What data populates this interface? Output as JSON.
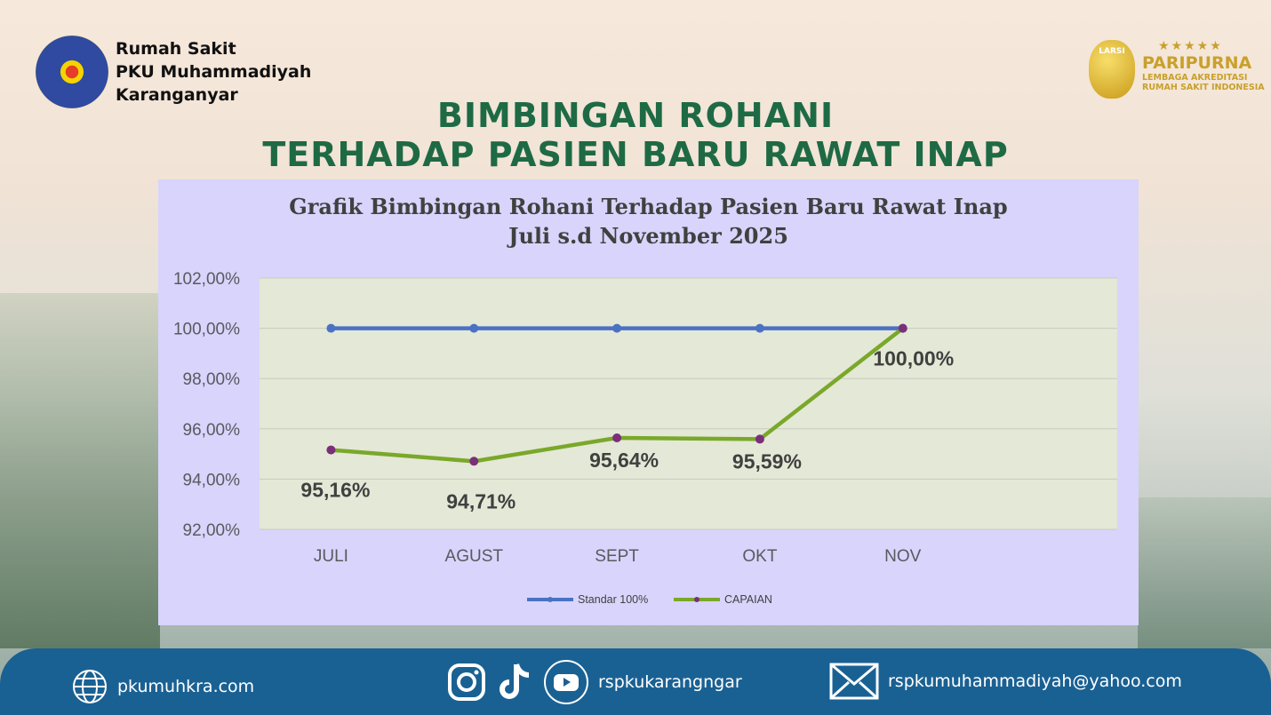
{
  "header": {
    "hospital_lines": [
      "Rumah Sakit",
      "PKU Muhammadiyah",
      "Karanganyar"
    ],
    "accreditation": {
      "badge": "LARSI",
      "stars": "★★★★★",
      "level": "PARIPURNA",
      "org_lines": [
        "LEMBAGA AKREDITASI",
        "RUMAH SAKIT INDONESIA"
      ]
    },
    "title_lines": [
      "BIMBINGAN ROHANI",
      "TERHADAP PASIEN BARU RAWAT INAP"
    ]
  },
  "chart_data": {
    "type": "line",
    "title": "Grafik Bimbingan Rohani Terhadap Pasien Baru Rawat Inap",
    "subtitle": "Juli s.d November 2025",
    "categories": [
      "JULI",
      "AGUST",
      "SEPT",
      "OKT",
      "NOV"
    ],
    "ylim": [
      92,
      102
    ],
    "yticks": [
      "92,00%",
      "94,00%",
      "96,00%",
      "98,00%",
      "100,00%",
      "102,00%"
    ],
    "grid": true,
    "legend_position": "bottom",
    "series": [
      {
        "name": "Standar 100%",
        "values": [
          100,
          100,
          100,
          100,
          100
        ],
        "color": "#4a72c4",
        "marker": "#4a72c4"
      },
      {
        "name": "CAPAIAN",
        "values": [
          95.16,
          94.71,
          95.64,
          95.59,
          100
        ],
        "color": "#7aa82a",
        "marker": "#7a2f7a",
        "labels": [
          "95,16%",
          "94,71%",
          "95,64%",
          "95,59%",
          "100,00%"
        ]
      }
    ]
  },
  "footer": {
    "website": "pkumuhkra.com",
    "social": "rspkukarangngar",
    "email": "rspkumuhammadiyah@yahoo.com"
  }
}
